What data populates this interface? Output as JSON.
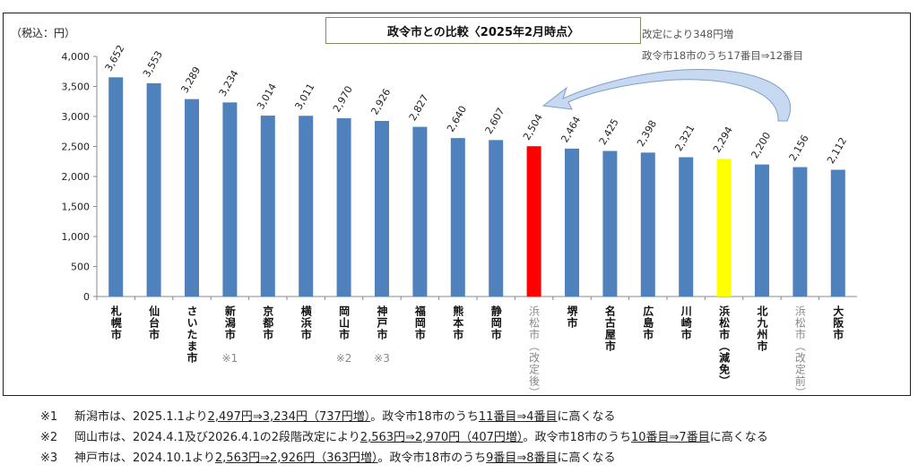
{
  "chart_data": {
    "type": "bar",
    "title": "政令市との比較〈2025年2月時点〉",
    "ylabel": "（税込：円）",
    "ylim": [
      0,
      4000
    ],
    "yticks": [
      "0",
      "500",
      "1,000",
      "1,500",
      "2,000",
      "2,500",
      "3,000",
      "3,500",
      "4,000"
    ],
    "ytick_values": [
      0,
      500,
      1000,
      1500,
      2000,
      2500,
      3000,
      3500,
      4000
    ],
    "grid": false,
    "categories": [
      "札幌市",
      "仙台市",
      "さいたま市",
      "新潟市",
      "京都市",
      "横浜市",
      "岡山市",
      "神戸市",
      "福岡市",
      "熊本市",
      "静岡市",
      "浜松市（改定後）",
      "堺市",
      "名古屋市",
      "広島市",
      "川崎市",
      "浜松市（減免）",
      "北九州市",
      "浜松市（改定前）",
      "大阪市"
    ],
    "values": [
      3652,
      3553,
      3289,
      3234,
      3014,
      3011,
      2970,
      2926,
      2827,
      2640,
      2607,
      2504,
      2464,
      2425,
      2398,
      2321,
      2294,
      2200,
      2156,
      2112
    ],
    "data_labels": [
      "3,652",
      "3,553",
      "3,289",
      "3,234",
      "3,014",
      "3,011",
      "2,970",
      "2,926",
      "2,827",
      "2,640",
      "2,607",
      "2,504",
      "2,464",
      "2,425",
      "2,398",
      "2,321",
      "2,294",
      "2,200",
      "2,156",
      "2,112"
    ],
    "category_marks": [
      "",
      "",
      "",
      "※1",
      "",
      "",
      "※2",
      "※3",
      "",
      "",
      "",
      "",
      "",
      "",
      "",
      "",
      "",
      "",
      "",
      ""
    ],
    "grey_labels": [
      11,
      18
    ],
    "colors": {
      "default": "#4f81bd",
      "highlight_after": "#ff0000",
      "highlight_reduced": "#ffff00",
      "arrow": "#c6d9f1"
    },
    "bar_colors": {
      "11": "#ff0000",
      "16": "#ffff00"
    },
    "annotations": [
      "改定により348円増",
      "政令市18市のうち17番目⇒12番目"
    ]
  },
  "footnotes": [
    {
      "mark": "※1",
      "parts": [
        {
          "t": "新潟市は、2025.1.1より"
        },
        {
          "t": "2,497円⇒3,234円（737円増）",
          "u": true
        },
        {
          "t": "。政令市18市のうち"
        },
        {
          "t": "11番目⇒4番目",
          "u": true
        },
        {
          "t": "に高くなる"
        }
      ]
    },
    {
      "mark": "※2",
      "parts": [
        {
          "t": "岡山市は、2024.4.1及び2026.4.1の2段階改定により"
        },
        {
          "t": "2,563円⇒2,970円（407円増）",
          "u": true
        },
        {
          "t": "。政令市18市のうち"
        },
        {
          "t": "10番目⇒7番目",
          "u": true
        },
        {
          "t": "に高くなる"
        }
      ]
    },
    {
      "mark": "※3",
      "parts": [
        {
          "t": "神戸市は、2024.10.1より"
        },
        {
          "t": "2,563円⇒2,926円（363円増）",
          "u": true
        },
        {
          "t": "。政令市18市のうち"
        },
        {
          "t": "9番目⇒8番目",
          "u": true
        },
        {
          "t": "に高くなる"
        }
      ]
    }
  ]
}
